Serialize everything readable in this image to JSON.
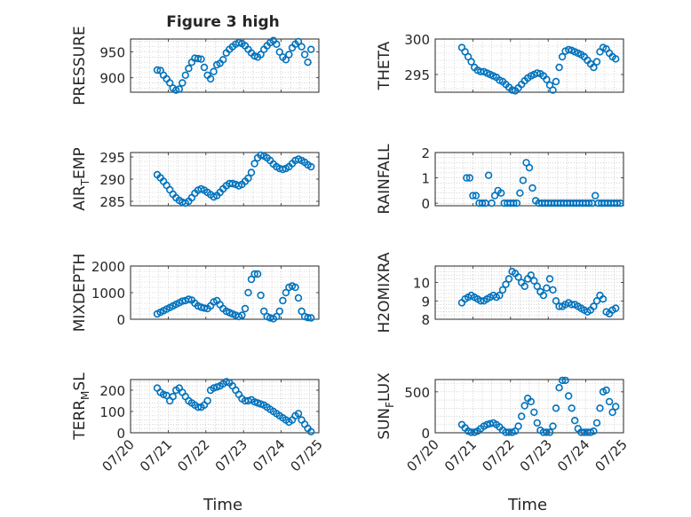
{
  "figure": {
    "title": "Figure 3 high",
    "xlabel": "Time"
  },
  "date_ticks": [
    "07/20",
    "07/21",
    "07/22",
    "07/23",
    "07/24",
    "07/25"
  ],
  "marker_color": "#0072BD",
  "chart_data": [
    {
      "type": "scatter",
      "ylabel": "PRESSURE",
      "ylim": [
        872,
        975
      ],
      "yticks": [
        900,
        950
      ],
      "grid": true,
      "x": [
        "07/20 17:00",
        "07/20 19:00",
        "07/20 21:00",
        "07/20 23:00",
        "07/21 01:00",
        "07/21 03:00",
        "07/21 05:00",
        "07/21 07:00",
        "07/21 09:00",
        "07/21 11:00",
        "07/21 13:00",
        "07/21 15:00",
        "07/21 17:00",
        "07/21 19:00",
        "07/21 21:00",
        "07/21 23:00",
        "07/22 01:00",
        "07/22 03:00",
        "07/22 05:00",
        "07/22 07:00",
        "07/22 09:00",
        "07/22 11:00",
        "07/22 13:00",
        "07/22 15:00",
        "07/22 17:00",
        "07/22 19:00",
        "07/22 21:00",
        "07/22 23:00",
        "07/23 01:00",
        "07/23 03:00",
        "07/23 05:00",
        "07/23 07:00",
        "07/23 09:00",
        "07/23 11:00",
        "07/23 13:00",
        "07/23 15:00",
        "07/23 17:00",
        "07/23 19:00",
        "07/23 21:00",
        "07/23 23:00",
        "07/24 01:00",
        "07/24 03:00",
        "07/24 05:00",
        "07/24 07:00",
        "07/24 09:00",
        "07/24 11:00",
        "07/24 13:00",
        "07/24 15:00",
        "07/24 17:00",
        "07/24 19:00"
      ],
      "y": [
        915,
        914,
        905,
        898,
        890,
        880,
        876,
        878,
        890,
        905,
        918,
        930,
        938,
        937,
        936,
        920,
        905,
        898,
        912,
        925,
        928,
        935,
        948,
        955,
        960,
        965,
        968,
        966,
        962,
        955,
        948,
        942,
        940,
        945,
        955,
        962,
        968,
        972,
        965,
        950,
        940,
        935,
        945,
        958,
        965,
        970,
        960,
        945,
        930,
        955
      ]
    },
    {
      "type": "scatter",
      "ylabel": "THETA",
      "ylim": [
        292.5,
        300
      ],
      "yticks": [
        295,
        300
      ],
      "grid": true,
      "x": [
        "07/20 17:00",
        "07/20 19:00",
        "07/20 21:00",
        "07/20 23:00",
        "07/21 01:00",
        "07/21 03:00",
        "07/21 05:00",
        "07/21 07:00",
        "07/21 09:00",
        "07/21 11:00",
        "07/21 13:00",
        "07/21 15:00",
        "07/21 17:00",
        "07/21 19:00",
        "07/21 21:00",
        "07/21 23:00",
        "07/22 01:00",
        "07/22 03:00",
        "07/22 05:00",
        "07/22 07:00",
        "07/22 09:00",
        "07/22 11:00",
        "07/22 13:00",
        "07/22 15:00",
        "07/22 17:00",
        "07/22 19:00",
        "07/22 21:00",
        "07/22 23:00",
        "07/23 01:00",
        "07/23 03:00",
        "07/23 05:00",
        "07/23 07:00",
        "07/23 09:00",
        "07/23 11:00",
        "07/23 13:00",
        "07/23 15:00",
        "07/23 17:00",
        "07/23 19:00",
        "07/23 21:00",
        "07/23 23:00",
        "07/24 01:00",
        "07/24 03:00",
        "07/24 05:00",
        "07/24 07:00",
        "07/24 09:00",
        "07/24 11:00",
        "07/24 13:00",
        "07/24 15:00",
        "07/24 17:00",
        "07/24 19:00"
      ],
      "y": [
        298.8,
        298.2,
        297.5,
        296.8,
        296,
        295.6,
        295.4,
        295.4,
        295.2,
        295,
        294.8,
        294.6,
        294.2,
        294,
        293.6,
        293.2,
        292.8,
        292.7,
        293.1,
        293.6,
        294.1,
        294.5,
        294.8,
        295,
        295.2,
        295.1,
        294.8,
        294.3,
        293.5,
        292.8,
        294,
        296,
        297.5,
        298.3,
        298.5,
        298.4,
        298.2,
        298,
        297.8,
        297.5,
        297,
        296.5,
        296,
        296.8,
        298.2,
        298.8,
        298.6,
        298,
        297.5,
        297.2
      ]
    },
    {
      "type": "scatter",
      "ylabel": "AIR_TEMP",
      "ylim": [
        284,
        296
      ],
      "yticks": [
        285,
        290,
        295
      ],
      "grid": true,
      "x": [
        "07/20 17:00",
        "07/20 19:00",
        "07/20 21:00",
        "07/20 23:00",
        "07/21 01:00",
        "07/21 03:00",
        "07/21 05:00",
        "07/21 07:00",
        "07/21 09:00",
        "07/21 11:00",
        "07/21 13:00",
        "07/21 15:00",
        "07/21 17:00",
        "07/21 19:00",
        "07/21 21:00",
        "07/21 23:00",
        "07/22 01:00",
        "07/22 03:00",
        "07/22 05:00",
        "07/22 07:00",
        "07/22 09:00",
        "07/22 11:00",
        "07/22 13:00",
        "07/22 15:00",
        "07/22 17:00",
        "07/22 19:00",
        "07/22 21:00",
        "07/22 23:00",
        "07/23 01:00",
        "07/23 03:00",
        "07/23 05:00",
        "07/23 07:00",
        "07/23 09:00",
        "07/23 11:00",
        "07/23 13:00",
        "07/23 15:00",
        "07/23 17:00",
        "07/23 19:00",
        "07/23 21:00",
        "07/23 23:00",
        "07/24 01:00",
        "07/24 03:00",
        "07/24 05:00",
        "07/24 07:00",
        "07/24 09:00",
        "07/24 11:00",
        "07/24 13:00",
        "07/24 15:00",
        "07/24 17:00",
        "07/24 19:00"
      ],
      "y": [
        291,
        290.3,
        289.5,
        288.6,
        287.6,
        286.6,
        285.8,
        285.2,
        284.8,
        284.6,
        285,
        285.8,
        286.8,
        287.5,
        287.8,
        287.5,
        287,
        286.5,
        286,
        286.3,
        287,
        287.8,
        288.5,
        289,
        289,
        288.8,
        288.5,
        288.8,
        289.5,
        290.2,
        291.5,
        293.5,
        294.8,
        295.4,
        295.2,
        294.8,
        294.2,
        293.4,
        292.8,
        292.4,
        292.2,
        292.4,
        292.8,
        293.5,
        294.2,
        294.5,
        294.2,
        293.8,
        293.2,
        292.8
      ]
    },
    {
      "type": "scatter",
      "ylabel": "RAINFALL",
      "ylim": [
        -0.1,
        2
      ],
      "yticks": [
        0,
        1,
        2
      ],
      "grid": true,
      "x": [
        "07/20 20:00",
        "07/20 22:00",
        "07/21 00:00",
        "07/21 02:00",
        "07/21 04:00",
        "07/21 06:00",
        "07/21 08:00",
        "07/21 10:00",
        "07/21 12:00",
        "07/21 14:00",
        "07/21 16:00",
        "07/21 18:00",
        "07/21 20:00",
        "07/21 22:00",
        "07/22 00:00",
        "07/22 02:00",
        "07/22 04:00",
        "07/22 06:00",
        "07/22 08:00",
        "07/22 10:00",
        "07/22 12:00",
        "07/22 14:00",
        "07/22 16:00",
        "07/22 18:00",
        "07/22 20:00",
        "07/22 22:00",
        "07/23 00:00",
        "07/23 02:00",
        "07/23 04:00",
        "07/23 06:00",
        "07/23 08:00",
        "07/23 10:00",
        "07/23 12:00",
        "07/23 14:00",
        "07/23 16:00",
        "07/23 18:00",
        "07/23 20:00",
        "07/23 22:00",
        "07/24 00:00",
        "07/24 02:00",
        "07/24 04:00",
        "07/24 06:00",
        "07/24 08:00",
        "07/24 10:00",
        "07/24 12:00",
        "07/24 14:00",
        "07/24 16:00",
        "07/24 18:00",
        "07/24 20:00",
        "07/24 22:00"
      ],
      "y": [
        1,
        1,
        0.3,
        0.3,
        0,
        0,
        0,
        1.1,
        0,
        0.3,
        0.5,
        0.4,
        0,
        0,
        0,
        0,
        0,
        0.4,
        0.9,
        1.6,
        1.4,
        0.6,
        0.1,
        0,
        0,
        0,
        0,
        0,
        0,
        0,
        0,
        0,
        0,
        0,
        0,
        0,
        0,
        0,
        0,
        0,
        0,
        0.3,
        0,
        0,
        0,
        0,
        0,
        0,
        0,
        0
      ]
    },
    {
      "type": "scatter",
      "ylabel": "MIXDEPTH",
      "ylim": [
        0,
        2000
      ],
      "yticks": [
        0,
        1000,
        2000
      ],
      "grid": true,
      "x": [
        "07/20 17:00",
        "07/20 19:00",
        "07/20 21:00",
        "07/20 23:00",
        "07/21 01:00",
        "07/21 03:00",
        "07/21 05:00",
        "07/21 07:00",
        "07/21 09:00",
        "07/21 11:00",
        "07/21 13:00",
        "07/21 15:00",
        "07/21 17:00",
        "07/21 19:00",
        "07/21 21:00",
        "07/21 23:00",
        "07/22 01:00",
        "07/22 03:00",
        "07/22 05:00",
        "07/22 07:00",
        "07/22 09:00",
        "07/22 11:00",
        "07/22 13:00",
        "07/22 15:00",
        "07/22 17:00",
        "07/22 19:00",
        "07/22 21:00",
        "07/22 23:00",
        "07/23 01:00",
        "07/23 03:00",
        "07/23 05:00",
        "07/23 07:00",
        "07/23 09:00",
        "07/23 11:00",
        "07/23 13:00",
        "07/23 15:00",
        "07/23 17:00",
        "07/23 19:00",
        "07/23 21:00",
        "07/23 23:00",
        "07/24 01:00",
        "07/24 03:00",
        "07/24 05:00",
        "07/24 07:00",
        "07/24 09:00",
        "07/24 11:00",
        "07/24 13:00",
        "07/24 15:00",
        "07/24 17:00",
        "07/24 19:00"
      ],
      "y": [
        200,
        260,
        320,
        380,
        440,
        500,
        560,
        620,
        680,
        700,
        750,
        720,
        600,
        500,
        450,
        420,
        400,
        500,
        650,
        700,
        550,
        400,
        300,
        250,
        200,
        150,
        100,
        150,
        400,
        1000,
        1500,
        1700,
        1700,
        900,
        300,
        100,
        50,
        20,
        100,
        300,
        700,
        1000,
        1200,
        1250,
        1200,
        800,
        300,
        100,
        60,
        50
      ]
    },
    {
      "type": "scatter",
      "ylabel": "H2OMIXRA",
      "ylim": [
        8,
        10.9
      ],
      "yticks": [
        8,
        9,
        10
      ],
      "grid": true,
      "x": [
        "07/20 17:00",
        "07/20 19:00",
        "07/20 21:00",
        "07/20 23:00",
        "07/21 01:00",
        "07/21 03:00",
        "07/21 05:00",
        "07/21 07:00",
        "07/21 09:00",
        "07/21 11:00",
        "07/21 13:00",
        "07/21 15:00",
        "07/21 17:00",
        "07/21 19:00",
        "07/21 21:00",
        "07/21 23:00",
        "07/22 01:00",
        "07/22 03:00",
        "07/22 05:00",
        "07/22 07:00",
        "07/22 09:00",
        "07/22 11:00",
        "07/22 13:00",
        "07/22 15:00",
        "07/22 17:00",
        "07/22 19:00",
        "07/22 21:00",
        "07/22 23:00",
        "07/23 01:00",
        "07/23 03:00",
        "07/23 05:00",
        "07/23 07:00",
        "07/23 09:00",
        "07/23 11:00",
        "07/23 13:00",
        "07/23 15:00",
        "07/23 17:00",
        "07/23 19:00",
        "07/23 21:00",
        "07/23 23:00",
        "07/24 01:00",
        "07/24 03:00",
        "07/24 05:00",
        "07/24 07:00",
        "07/24 09:00",
        "07/24 11:00",
        "07/24 13:00",
        "07/24 15:00",
        "07/24 17:00",
        "07/24 19:00"
      ],
      "y": [
        8.9,
        9.1,
        9.2,
        9.3,
        9.2,
        9.1,
        9,
        9,
        9.1,
        9.2,
        9.3,
        9.2,
        9.3,
        9.6,
        9.9,
        10.2,
        10.6,
        10.5,
        10.3,
        10,
        9.8,
        10.2,
        10.4,
        10.1,
        9.8,
        9.5,
        9.3,
        9.7,
        10.2,
        9.6,
        9,
        8.7,
        8.7,
        8.8,
        8.9,
        8.8,
        8.8,
        8.7,
        8.6,
        8.5,
        8.4,
        8.5,
        8.7,
        9,
        9.3,
        9.1,
        8.4,
        8.3,
        8.5,
        8.6
      ]
    },
    {
      "type": "scatter",
      "ylabel": "TERR_MSL",
      "ylim": [
        0,
        250
      ],
      "yticks": [
        0,
        100,
        200
      ],
      "grid": true,
      "x": [
        "07/20 17:00",
        "07/20 19:00",
        "07/20 21:00",
        "07/20 23:00",
        "07/21 01:00",
        "07/21 03:00",
        "07/21 05:00",
        "07/21 07:00",
        "07/21 09:00",
        "07/21 11:00",
        "07/21 13:00",
        "07/21 15:00",
        "07/21 17:00",
        "07/21 19:00",
        "07/21 21:00",
        "07/21 23:00",
        "07/22 01:00",
        "07/22 03:00",
        "07/22 05:00",
        "07/22 07:00",
        "07/22 09:00",
        "07/22 11:00",
        "07/22 13:00",
        "07/22 15:00",
        "07/22 17:00",
        "07/22 19:00",
        "07/22 21:00",
        "07/22 23:00",
        "07/23 01:00",
        "07/23 03:00",
        "07/23 05:00",
        "07/23 07:00",
        "07/23 09:00",
        "07/23 11:00",
        "07/23 13:00",
        "07/23 15:00",
        "07/23 17:00",
        "07/23 19:00",
        "07/23 21:00",
        "07/23 23:00",
        "07/24 01:00",
        "07/24 03:00",
        "07/24 05:00",
        "07/24 07:00",
        "07/24 09:00",
        "07/24 11:00",
        "07/24 13:00",
        "07/24 15:00",
        "07/24 17:00",
        "07/24 19:00"
      ],
      "y": [
        210,
        190,
        180,
        175,
        150,
        170,
        200,
        210,
        190,
        170,
        150,
        140,
        130,
        120,
        120,
        130,
        150,
        200,
        210,
        215,
        220,
        230,
        240,
        235,
        220,
        200,
        180,
        160,
        150,
        150,
        155,
        145,
        140,
        135,
        130,
        120,
        110,
        100,
        90,
        80,
        70,
        60,
        50,
        60,
        80,
        90,
        60,
        40,
        20,
        5
      ]
    },
    {
      "type": "scatter",
      "ylabel": "SUN_FLUX",
      "ylim": [
        0,
        650
      ],
      "yticks": [
        0,
        500
      ],
      "grid": true,
      "x": [
        "07/20 17:00",
        "07/20 19:00",
        "07/20 21:00",
        "07/20 23:00",
        "07/21 01:00",
        "07/21 03:00",
        "07/21 05:00",
        "07/21 07:00",
        "07/21 09:00",
        "07/21 11:00",
        "07/21 13:00",
        "07/21 15:00",
        "07/21 17:00",
        "07/21 19:00",
        "07/21 21:00",
        "07/21 23:00",
        "07/22 01:00",
        "07/22 03:00",
        "07/22 05:00",
        "07/22 07:00",
        "07/22 09:00",
        "07/22 11:00",
        "07/22 13:00",
        "07/22 15:00",
        "07/22 17:00",
        "07/22 19:00",
        "07/22 21:00",
        "07/22 23:00",
        "07/23 01:00",
        "07/23 03:00",
        "07/23 05:00",
        "07/23 07:00",
        "07/23 09:00",
        "07/23 11:00",
        "07/23 13:00",
        "07/23 15:00",
        "07/23 17:00",
        "07/23 19:00",
        "07/23 21:00",
        "07/23 23:00",
        "07/24 01:00",
        "07/24 03:00",
        "07/24 05:00",
        "07/24 07:00",
        "07/24 09:00",
        "07/24 11:00",
        "07/24 13:00",
        "07/24 15:00",
        "07/24 17:00",
        "07/24 19:00"
      ],
      "y": [
        100,
        60,
        20,
        5,
        5,
        20,
        50,
        80,
        100,
        110,
        120,
        100,
        70,
        30,
        5,
        5,
        5,
        20,
        80,
        200,
        330,
        420,
        380,
        250,
        120,
        30,
        5,
        5,
        5,
        80,
        300,
        550,
        640,
        640,
        450,
        300,
        150,
        50,
        5,
        5,
        5,
        5,
        20,
        120,
        300,
        500,
        520,
        380,
        250,
        320
      ]
    }
  ]
}
